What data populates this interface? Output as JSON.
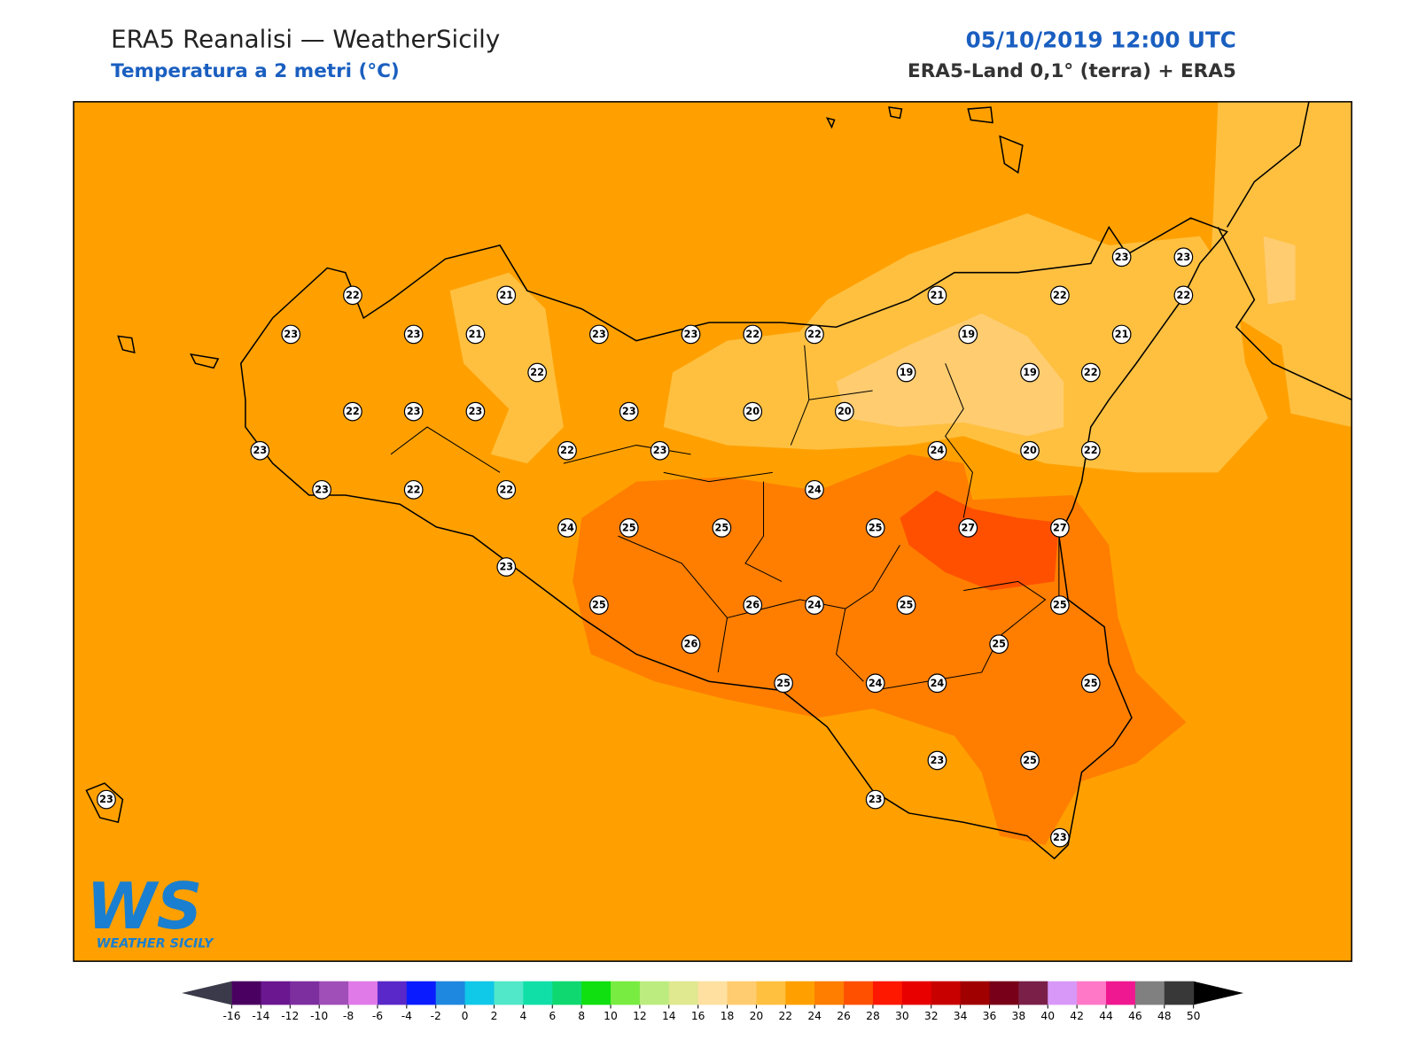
{
  "header": {
    "title": "ERA5 Reanalisi — WeatherSicily",
    "subtitle": "Temperatura a 2 metri (°C)",
    "date": "05/10/2019 12:00 UTC",
    "source": "ERA5-Land 0,1° (terra) + ERA5"
  },
  "logo": {
    "mark": "WS",
    "text": "WEATHER SICILY"
  },
  "stations": {
    "values": [
      22,
      21,
      23,
      23,
      21,
      23,
      23,
      22,
      22,
      21,
      22,
      23,
      23,
      22,
      19,
      21,
      22,
      19,
      19,
      22,
      22,
      23,
      23,
      23,
      20,
      20,
      23,
      22,
      23,
      24,
      20,
      22,
      23,
      22,
      22,
      24,
      24,
      25,
      25,
      25,
      27,
      27,
      23,
      25,
      26,
      24,
      25,
      25,
      26,
      25,
      25,
      24,
      24,
      25,
      23,
      25,
      23,
      23,
      23
    ]
  },
  "colorbar": {
    "ticks": [
      -16,
      -14,
      -12,
      -10,
      -8,
      -6,
      -4,
      -2,
      0,
      2,
      4,
      6,
      8,
      10,
      12,
      14,
      16,
      18,
      20,
      22,
      24,
      26,
      28,
      30,
      32,
      34,
      36,
      38,
      40,
      42,
      44,
      46,
      48,
      50
    ],
    "colors": [
      "#4a0060",
      "#6a1790",
      "#7d2fa0",
      "#a04fb8",
      "#e07ae8",
      "#5a28c8",
      "#0a1cff",
      "#1e88e0",
      "#10c8e8",
      "#50e8c8",
      "#10e0a8",
      "#10d870",
      "#10e010",
      "#78ec40",
      "#bcec80",
      "#e0e890",
      "#ffe0a0",
      "#ffcc70",
      "#ffc040",
      "#ffa000",
      "#ff7e00",
      "#ff5000",
      "#ff1800",
      "#e80000",
      "#c80000",
      "#a00000",
      "#780018",
      "#7a2048",
      "#d898f8",
      "#ff78c8",
      "#f01890",
      "#808080",
      "#383838"
    ],
    "under_color": "#3a3a4a",
    "over_color": "#000000"
  }
}
